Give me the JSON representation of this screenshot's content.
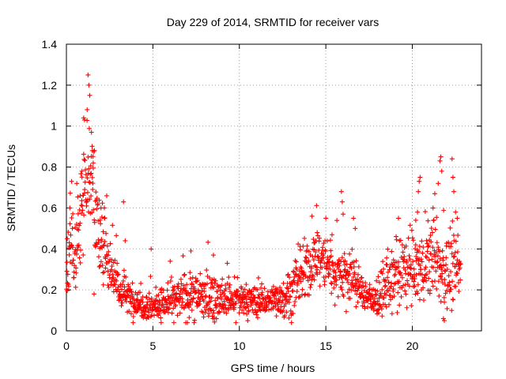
{
  "chart_data": {
    "type": "scatter",
    "title": "Day 229 of 2014, SRMTID for receiver vars",
    "xlabel": "GPS time / hours",
    "ylabel": "SRMTID / TECUs",
    "xlim": [
      0,
      24
    ],
    "ylim": [
      0,
      1.4
    ],
    "x_ticks": [
      "0",
      "5",
      "10",
      "15",
      "20"
    ],
    "y_ticks": [
      "0",
      "0.2",
      "0.4",
      "0.6",
      "0.8",
      "1",
      "1.2",
      "1.4"
    ],
    "grid": true,
    "marker": "+",
    "point_color": "#ff0000",
    "profile": {
      "hours": [
        0,
        0.25,
        0.5,
        0.75,
        1.0,
        1.25,
        1.5,
        1.75,
        2.0,
        2.5,
        3.0,
        4.0,
        5.0,
        6.0,
        7.0,
        8.0,
        9.0,
        10.0,
        11.0,
        12.0,
        13.0,
        13.5,
        14.0,
        14.5,
        15.0,
        15.5,
        16.0,
        16.5,
        17.0,
        17.5,
        18.0,
        18.5,
        19.0,
        19.5,
        20.0,
        20.5,
        21.0,
        21.5,
        22.0,
        22.5,
        22.8
      ],
      "typical_srmtid": [
        0.22,
        0.42,
        0.35,
        0.5,
        0.7,
        0.8,
        0.72,
        0.5,
        0.4,
        0.35,
        0.2,
        0.14,
        0.12,
        0.14,
        0.17,
        0.17,
        0.15,
        0.15,
        0.14,
        0.15,
        0.18,
        0.25,
        0.3,
        0.36,
        0.34,
        0.3,
        0.28,
        0.26,
        0.2,
        0.16,
        0.14,
        0.22,
        0.25,
        0.28,
        0.3,
        0.3,
        0.35,
        0.32,
        0.28,
        0.3,
        0.28
      ],
      "spread_srmtid": [
        0.08,
        0.12,
        0.1,
        0.14,
        0.16,
        0.18,
        0.16,
        0.14,
        0.12,
        0.1,
        0.06,
        0.05,
        0.05,
        0.05,
        0.08,
        0.08,
        0.06,
        0.05,
        0.05,
        0.05,
        0.07,
        0.09,
        0.1,
        0.09,
        0.09,
        0.1,
        0.1,
        0.09,
        0.06,
        0.05,
        0.05,
        0.09,
        0.1,
        0.11,
        0.11,
        0.11,
        0.12,
        0.12,
        0.12,
        0.12,
        0.1
      ],
      "samples": 1500
    },
    "peaks": [
      {
        "x": 0.05,
        "y": 0.45
      },
      {
        "x": 0.2,
        "y": 0.6
      },
      {
        "x": 0.3,
        "y": 0.73
      },
      {
        "x": 0.6,
        "y": 0.72
      },
      {
        "x": 0.9,
        "y": 0.78
      },
      {
        "x": 1.0,
        "y": 1.04
      },
      {
        "x": 1.05,
        "y": 1.03
      },
      {
        "x": 1.2,
        "y": 1.08
      },
      {
        "x": 1.25,
        "y": 1.25
      },
      {
        "x": 1.3,
        "y": 1.2
      },
      {
        "x": 1.35,
        "y": 1.15
      },
      {
        "x": 1.45,
        "y": 0.97
      },
      {
        "x": 1.5,
        "y": 0.88
      },
      {
        "x": 1.55,
        "y": 0.82
      },
      {
        "x": 2.0,
        "y": 0.6
      },
      {
        "x": 2.2,
        "y": 0.55
      },
      {
        "x": 3.3,
        "y": 0.63
      },
      {
        "x": 3.4,
        "y": 0.44
      },
      {
        "x": 4.9,
        "y": 0.4
      },
      {
        "x": 6.0,
        "y": 0.34
      },
      {
        "x": 7.2,
        "y": 0.39
      },
      {
        "x": 8.5,
        "y": 0.37
      },
      {
        "x": 9.3,
        "y": 0.33
      },
      {
        "x": 12.8,
        "y": 0.27
      },
      {
        "x": 14.2,
        "y": 0.56
      },
      {
        "x": 14.5,
        "y": 0.48
      },
      {
        "x": 15.0,
        "y": 0.55
      },
      {
        "x": 15.9,
        "y": 0.68
      },
      {
        "x": 15.95,
        "y": 0.63
      },
      {
        "x": 16.0,
        "y": 0.57
      },
      {
        "x": 16.6,
        "y": 0.55
      },
      {
        "x": 16.7,
        "y": 0.5
      },
      {
        "x": 19.2,
        "y": 0.55
      },
      {
        "x": 20.2,
        "y": 0.54
      },
      {
        "x": 20.3,
        "y": 0.58
      },
      {
        "x": 20.35,
        "y": 0.68
      },
      {
        "x": 20.4,
        "y": 0.73
      },
      {
        "x": 20.45,
        "y": 0.75
      },
      {
        "x": 21.2,
        "y": 0.6
      },
      {
        "x": 21.3,
        "y": 0.67
      },
      {
        "x": 21.5,
        "y": 0.72
      },
      {
        "x": 21.6,
        "y": 0.83
      },
      {
        "x": 21.65,
        "y": 0.85
      },
      {
        "x": 21.7,
        "y": 0.78
      },
      {
        "x": 22.3,
        "y": 0.84
      },
      {
        "x": 22.35,
        "y": 0.75
      },
      {
        "x": 22.4,
        "y": 0.68
      },
      {
        "x": 22.5,
        "y": 0.58
      },
      {
        "x": 22.6,
        "y": 0.55
      },
      {
        "x": 21.8,
        "y": 0.06
      },
      {
        "x": 21.85,
        "y": 0.05
      },
      {
        "x": 9.8,
        "y": 0.04
      },
      {
        "x": 1.6,
        "y": 0.18
      }
    ]
  }
}
